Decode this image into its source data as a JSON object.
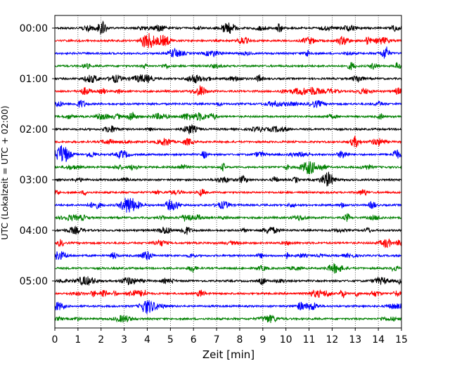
{
  "chart_data": {
    "type": "line",
    "subtype": "helicorder seismogram",
    "xlabel": "Zeit  [min]",
    "ylabel": "UTC (Lokalzeit = UTC + 02:00)",
    "xlim": [
      0,
      15
    ],
    "x_ticks": [
      "0",
      "1",
      "2",
      "3",
      "4",
      "5",
      "6",
      "7",
      "8",
      "9",
      "10",
      "11",
      "12",
      "13",
      "14",
      "15"
    ],
    "y_ticks": [
      "00:00",
      "01:00",
      "02:00",
      "03:00",
      "04:00",
      "05:00"
    ],
    "trace_interval_minutes": 15,
    "trace_count": 24,
    "trace_colors": [
      "#000000",
      "#ff0000",
      "#0000ff",
      "#008000"
    ],
    "grid": {
      "vertical_dotted": true,
      "horizontal": false
    },
    "legend": "none"
  }
}
